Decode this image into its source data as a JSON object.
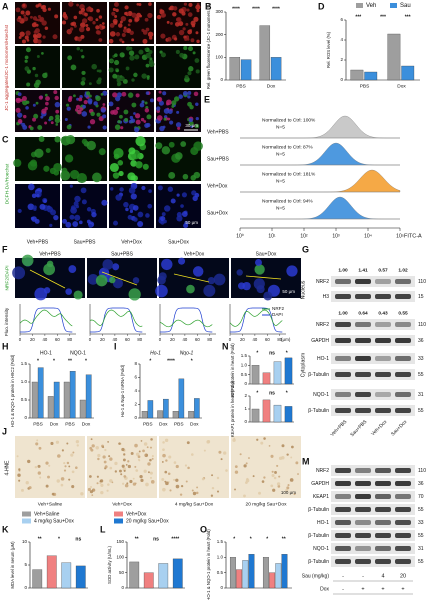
{
  "panel_A": {
    "label": "A",
    "ylabel": "JC-1 aggregates/JC-1 monomers/Hoechst",
    "scale": "30 μm"
  },
  "chart_data": [
    {
      "type": "bar",
      "panel": "B",
      "ylabel": "Rel. green fluorescence (JC-1 monomers, %)",
      "ylim": [
        0,
        300
      ],
      "yticks": [
        0,
        100,
        200,
        300
      ],
      "categories": [
        "PBS",
        "Dox"
      ],
      "series": [
        {
          "color": "#9e9e9e",
          "values": [
            100,
            240
          ]
        },
        {
          "color": "#3b8fdc",
          "values": [
            90,
            100
          ]
        }
      ],
      "annotations": [
        "****",
        "****",
        "****"
      ]
    },
    {
      "type": "bar",
      "panel": "D",
      "ylabel": "Rel. ROS level (%)",
      "ylim": [
        0,
        6
      ],
      "yticks": [
        0,
        2,
        4,
        6
      ],
      "categories": [
        "PBS",
        "Dox"
      ],
      "series": [
        {
          "name": "Veh",
          "color": "#9e9e9e",
          "values": [
            1,
            4.6
          ]
        },
        {
          "name": "Sau",
          "color": "#3b8fdc",
          "values": [
            0.8,
            1.4
          ]
        }
      ],
      "annotations": [
        "***",
        "***",
        "***"
      ],
      "legend": true
    },
    {
      "type": "bar",
      "panel": "H",
      "ylabel": "HO-1 & NQO-1 protein in H9C2 (Fold)",
      "ylim": [
        0,
        1.5
      ],
      "yticks": [
        0,
        0.5,
        {
          "value": 1,
          "label": "1.0"
        },
        1.5
      ],
      "categories": [
        "PBS",
        "Dox",
        "PBS",
        "Dox"
      ],
      "groups": [
        "HO-1",
        "NQO-1"
      ],
      "series": [
        {
          "color": "#9e9e9e",
          "values": [
            1.0,
            0.6,
            1.0,
            0.5
          ]
        },
        {
          "color": "#3b8fdc",
          "values": [
            1.4,
            1.0,
            1.3,
            1.2
          ]
        }
      ],
      "annotations": [
        "*",
        "*",
        "**",
        "*"
      ]
    },
    {
      "type": "bar",
      "panel": "I",
      "ylabel": "Ho-1 & Nqo-1 mRNA (Fold)",
      "ylim": [
        0,
        8
      ],
      "yticks": [
        0,
        2,
        4,
        6,
        8
      ],
      "categories": [
        "PBS",
        "Dox",
        "PBS",
        "Dox"
      ],
      "groups": [
        "Ho-1",
        "Nqo-1"
      ],
      "series": [
        {
          "color": "#9e9e9e",
          "values": [
            1.0,
            1.1,
            1.0,
            1.0
          ]
        },
        {
          "color": "#3b8fdc",
          "values": [
            2.6,
            2.8,
            5.8,
            2.9
          ]
        }
      ],
      "annotations": [
        "*",
        "****",
        "*"
      ]
    },
    {
      "type": "bar",
      "panel": "N",
      "ylabel": "NRF2 protein in heart (Fold)",
      "ylim": [
        0,
        1.5
      ],
      "yticks": [
        0,
        0.5,
        {
          "value": 1,
          "label": "1.0"
        },
        1.5
      ],
      "values": [
        1.0,
        0.6,
        1.2,
        1.4
      ],
      "colors": [
        "#9e9e9e",
        "#f08080",
        "#a8d0f0",
        "#1f78d1"
      ],
      "annotations": [
        "*",
        "ns",
        "*"
      ]
    },
    {
      "type": "bar",
      "ylabel": "KEAP1 protein in heart (Fold)",
      "ylim": [
        0,
        2
      ],
      "yticks": [
        0,
        1,
        2
      ],
      "values": [
        1.0,
        1.7,
        1.3,
        1.2
      ],
      "colors": [
        "#9e9e9e",
        "#f08080",
        "#a8d0f0",
        "#1f78d1"
      ],
      "annotations": [
        "*",
        "ns",
        "*"
      ]
    },
    {
      "type": "bar",
      "panel": "K",
      "ylabel": "MDA level in serum (μM)",
      "ylim": [
        0,
        10
      ],
      "yticks": [
        0,
        5,
        10
      ],
      "values": [
        4,
        7,
        5.5,
        4.8
      ],
      "colors": [
        "#9e9e9e",
        "#f08080",
        "#a8d0f0",
        "#1f78d1"
      ],
      "annotations": [
        "**",
        "*",
        "ns"
      ]
    },
    {
      "type": "bar",
      "panel": "L",
      "ylabel": "SOD activity (U/mL)",
      "ylim": [
        0,
        150
      ],
      "yticks": [
        0,
        50,
        100,
        150
      ],
      "values": [
        85,
        50,
        80,
        95
      ],
      "colors": [
        "#9e9e9e",
        "#f08080",
        "#a8d0f0",
        "#1f78d1"
      ],
      "annotations": [
        "**",
        "ns",
        "****"
      ]
    },
    {
      "type": "bar",
      "panel": "O",
      "ylabel": "HO-1 & NQO-1 protein in heart (Fold)",
      "ylim": [
        0,
        1.5
      ],
      "yticks": [
        0,
        0.5,
        {
          "value": 1,
          "label": "1.0"
        },
        1.5
      ],
      "series": [
        {
          "color": "#9e9e9e",
          "values": [
            1.0,
            1.0
          ]
        },
        {
          "color": "#f08080",
          "values": [
            0.6,
            0.5
          ]
        },
        {
          "color": "#a8d0f0",
          "values": [
            0.9,
            0.8
          ]
        },
        {
          "color": "#1f78d1",
          "values": [
            1.1,
            1.1
          ]
        }
      ],
      "annotations": [
        "*",
        "*",
        "*",
        "**"
      ]
    }
  ],
  "panel_C": {
    "label": "C",
    "ylabel": "DCFH-DA/Hoechst",
    "scale": "50 μm",
    "groups": [
      "Veh+PBS",
      "Sau+PBS",
      "Veh+Dox",
      "Sau+Dox"
    ]
  },
  "panel_E": {
    "label": "E",
    "xlabel": "FITC-A",
    "xticks": [
      {
        "value": 1,
        "label": "10⁰"
      },
      {
        "value": 10,
        "label": "10¹"
      },
      {
        "value": 100,
        "label": "10²"
      },
      {
        "value": 1000,
        "label": "10³"
      },
      {
        "value": 10000,
        "label": "10⁴"
      },
      {
        "value": 100000,
        "label": "10⁵"
      }
    ],
    "rows": [
      {
        "group": "Veh+PBS",
        "note": "Normalized to Ctrl: 100%",
        "n": "N=5",
        "color": "#c4c4c4"
      },
      {
        "group": "Sau+PBS",
        "note": "Normalized to Ctrl: 87%",
        "n": "N=5",
        "color": "#3b8fdc"
      },
      {
        "group": "Veh+Dox",
        "note": "Normalized to Ctrl: 181%",
        "n": "N=5",
        "color": "#f5a033"
      },
      {
        "group": "Sau+Dox",
        "note": "Normalized to Ctrl: 94%",
        "n": "N=5",
        "color": "#3b8fdc"
      }
    ]
  },
  "panel_F": {
    "label": "F",
    "ylabel": "NRF2/DAPI",
    "groups": [
      "Veh+PBS",
      "Sau+PBS",
      "Veh+Dox",
      "Sau+Dox"
    ],
    "scale": "50 μm",
    "profile_ylabel": "Fluo. intensity",
    "xticks": [
      0,
      20,
      40,
      60,
      80
    ],
    "xunit": "(μm)",
    "legend": [
      {
        "name": "NRF2",
        "color": "#2ca02c"
      },
      {
        "name": "DAPI",
        "color": "#1f3fd0"
      }
    ]
  },
  "panel_G": {
    "label": "G",
    "regions": [
      "Nucleus",
      "Cytoplasm"
    ],
    "ratios": [
      [
        "1.00",
        "1.41",
        "0.57",
        "1.02"
      ],
      [
        "1.00",
        "0.64",
        "0.43",
        "0.55"
      ]
    ],
    "bands": [
      {
        "name": "NRF2",
        "kda": "110"
      },
      {
        "name": "H3",
        "kda": "15"
      },
      {
        "name": "NRF2",
        "kda": "110"
      },
      {
        "name": "GAPDH",
        "kda": "36"
      },
      {
        "name": "HO-1",
        "kda": "33"
      },
      {
        "name": "β-Tubulin",
        "kda": "55"
      },
      {
        "name": "NQO-1",
        "kda": "31"
      },
      {
        "name": "β-Tubulin",
        "kda": "55"
      }
    ],
    "lanes": [
      "Veh+PBS",
      "Sau+PBS",
      "Veh+Dox",
      "Sau+Dox"
    ]
  },
  "panel_J": {
    "label": "J",
    "ylabel": "4-HNE",
    "groups": [
      "Veh+Saline",
      "Veh+Dox",
      "4 mg/kg Sau+Dox",
      "20 mg/kg Sau+Dox"
    ],
    "scale": "100 μm"
  },
  "legend_KL": [
    {
      "name": "Veh+Saline",
      "color": "#9e9e9e"
    },
    {
      "name": "Veh+Dox",
      "color": "#f08080"
    },
    {
      "name": "4 mg/kg Sau+Dox",
      "color": "#a8d0f0"
    },
    {
      "name": "20 mg/kg Sau+Dox",
      "color": "#1f78d1"
    }
  ],
  "panel_M": {
    "label": "M",
    "bands": [
      {
        "name": "NRF2",
        "kda": "110"
      },
      {
        "name": "GAPDH",
        "kda": "36"
      },
      {
        "name": "KEAP1",
        "kda": "70"
      },
      {
        "name": "β-Tubulin",
        "kda": "55"
      },
      {
        "name": "HO-1",
        "kda": "33"
      },
      {
        "name": "β-Tubulin",
        "kda": "55"
      },
      {
        "name": "NQO-1",
        "kda": "31"
      },
      {
        "name": "β-Tubulin",
        "kda": "55"
      }
    ],
    "rows": [
      {
        "name": "Sau (mg/kg)",
        "values": [
          "-",
          "-",
          "4",
          "20"
        ]
      },
      {
        "name": "Dox",
        "values": [
          "-",
          "+",
          "+",
          "+"
        ]
      }
    ]
  }
}
